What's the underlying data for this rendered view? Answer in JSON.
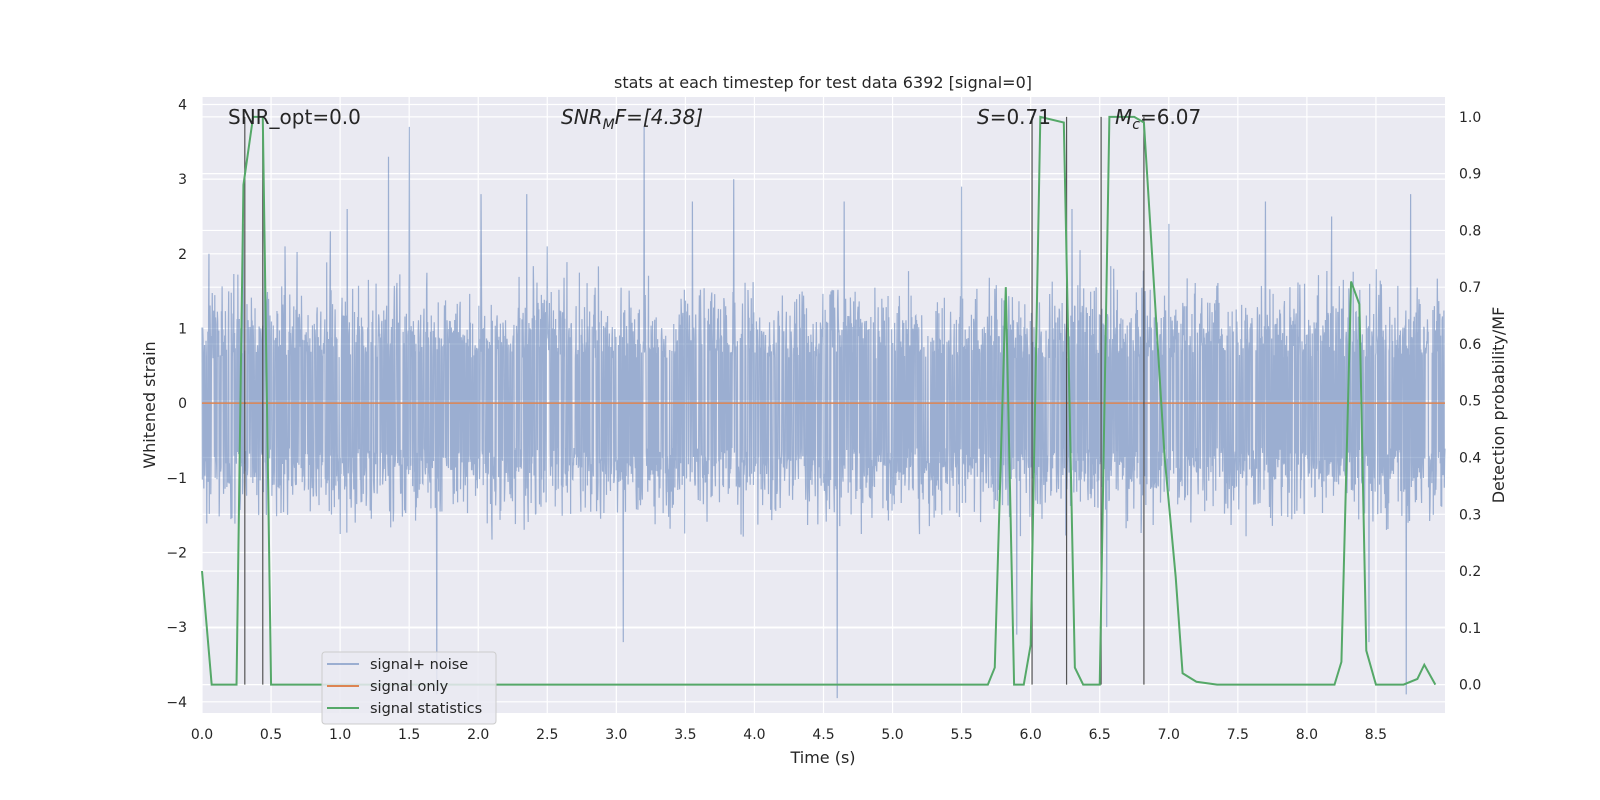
{
  "chart_data": {
    "type": "line",
    "title": "stats at each timestep for test data 6392 [signal=0]",
    "xlabel": "Time (s)",
    "ylabel_left": "Whitened strain",
    "ylabel_right": "Detection probability/MF",
    "xlim": [
      0,
      9.0
    ],
    "ylim_left": [
      -4.15,
      4.1
    ],
    "ylim_right": [
      -0.05,
      1.035
    ],
    "x_ticks": [
      "0.0",
      "0.5",
      "1.0",
      "1.5",
      "2.0",
      "2.5",
      "3.0",
      "3.5",
      "4.0",
      "4.5",
      "5.0",
      "5.5",
      "6.0",
      "6.5",
      "7.0",
      "7.5",
      "8.0",
      "8.5"
    ],
    "y_ticks_left": [
      "−4",
      "−3",
      "−2",
      "−1",
      "0",
      "1",
      "2",
      "3",
      "4"
    ],
    "y_ticks_right": [
      "0.0",
      "0.1",
      "0.2",
      "0.3",
      "0.4",
      "0.5",
      "0.6",
      "0.7",
      "0.8",
      "0.9",
      "1.0"
    ],
    "grid": true,
    "annotations": {
      "snr_opt": "SNR_opt=0.0",
      "snr_mf": "SNR",
      "snr_mf_sub": "M",
      "snr_mf_rest": "F=[4.38]",
      "s_label": "S",
      "s_value": "=0.71",
      "mc_label": "M",
      "mc_sub": "c",
      "mc_value": "=6.07"
    },
    "legend": {
      "placement": "lower-left",
      "entries": [
        "signal+ noise",
        "signal only",
        "signal statistics"
      ]
    },
    "series": [
      {
        "name": "signal+ noise",
        "axis": "left",
        "color": "#4c72b0",
        "kind": "noise",
        "x_range": [
          0,
          9.0
        ],
        "envelope_typical": 1.4,
        "peaks": [
          [
            0.05,
            2.0
          ],
          [
            0.3,
            2.4
          ],
          [
            0.6,
            2.1
          ],
          [
            0.93,
            2.3
          ],
          [
            1.05,
            2.6
          ],
          [
            1.35,
            3.3
          ],
          [
            1.5,
            3.7
          ],
          [
            1.7,
            -3.9
          ],
          [
            2.02,
            2.8
          ],
          [
            2.35,
            2.8
          ],
          [
            2.5,
            2.1
          ],
          [
            3.05,
            -3.2
          ],
          [
            3.2,
            3.7
          ],
          [
            3.55,
            2.7
          ],
          [
            3.85,
            3.0
          ],
          [
            4.6,
            -3.95
          ],
          [
            4.65,
            2.7
          ],
          [
            5.5,
            2.9
          ],
          [
            5.9,
            -3.1
          ],
          [
            6.3,
            2.6
          ],
          [
            6.55,
            -3.0
          ],
          [
            7.0,
            2.4
          ],
          [
            7.7,
            2.7
          ],
          [
            8.18,
            2.5
          ],
          [
            8.45,
            2.7
          ],
          [
            8.75,
            2.8
          ],
          [
            8.72,
            -3.9
          ],
          [
            8.45,
            -3.2
          ]
        ]
      },
      {
        "name": "signal only",
        "axis": "left",
        "color": "#dd8452",
        "x": [
          0,
          9.0
        ],
        "y": [
          0,
          0
        ]
      },
      {
        "name": "signal statistics",
        "axis": "right",
        "color": "#55a868",
        "x": [
          0.0,
          0.07,
          0.2,
          0.25,
          0.3,
          0.37,
          0.44,
          0.5,
          0.6,
          0.7,
          0.8,
          1.0,
          2.0,
          3.0,
          4.0,
          5.0,
          5.69,
          5.74,
          5.82,
          5.88,
          5.95,
          6.0,
          6.07,
          6.24,
          6.32,
          6.38,
          6.5,
          6.57,
          6.75,
          6.82,
          6.97,
          7.05,
          7.1,
          7.2,
          7.35,
          7.5,
          8.0,
          8.2,
          8.25,
          8.32,
          8.38,
          8.43,
          8.5,
          8.7,
          8.8,
          8.85,
          8.93
        ],
        "y": [
          0.2,
          0.0,
          0.0,
          0.0,
          0.88,
          1.0,
          1.0,
          0.0,
          0.0,
          0.0,
          0.0,
          0.0,
          0.0,
          0.0,
          0.0,
          0.0,
          0.0,
          0.03,
          0.7,
          0.0,
          0.0,
          0.07,
          1.0,
          0.99,
          0.03,
          0.0,
          0.0,
          1.0,
          1.0,
          0.99,
          0.4,
          0.19,
          0.02,
          0.005,
          0.0,
          0.0,
          0.0,
          0.0,
          0.04,
          0.71,
          0.67,
          0.06,
          0.0,
          0.0,
          0.01,
          0.035,
          0.0
        ]
      }
    ],
    "vertical_markers": [
      0.31,
      0.44,
      6.01,
      6.26,
      6.51,
      6.82
    ]
  }
}
